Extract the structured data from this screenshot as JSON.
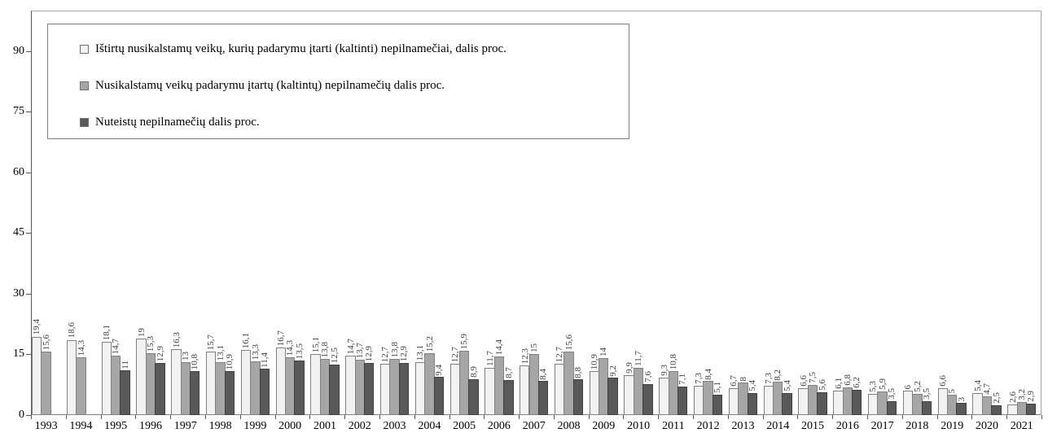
{
  "chart_data": {
    "type": "bar",
    "title": "",
    "xlabel": "",
    "ylabel": "",
    "ylim": [
      0,
      100
    ],
    "yticks": [
      0,
      15,
      30,
      45,
      60,
      75,
      90
    ],
    "grid": false,
    "legend_position": "top-left",
    "value_labels": "rotated-vertical, comma decimal separator",
    "categories": [
      "1993",
      "1994",
      "1995",
      "1996",
      "1997",
      "1998",
      "1999",
      "2000",
      "2001",
      "2002",
      "2003",
      "2004",
      "2005",
      "2006",
      "2007",
      "2008",
      "2009",
      "2010",
      "2011",
      "2012",
      "2013",
      "2014",
      "2015",
      "2016",
      "2017",
      "2018",
      "2019",
      "2020",
      "2021"
    ],
    "series": [
      {
        "name": "Ištirtų nusikalstamų veikų, kurių padarymu įtarti (kaltinti) nepilnamečiai, dalis proc.",
        "color": "#f2f2f2",
        "border": "#808080",
        "values": [
          19.4,
          18.6,
          18.1,
          19,
          16.3,
          15.7,
          16.1,
          16.7,
          15.1,
          14.7,
          12.7,
          13.1,
          12.7,
          11.7,
          12.3,
          12.7,
          10.9,
          9.9,
          9.3,
          7.3,
          6.7,
          7.3,
          6.6,
          6.1,
          5.3,
          6,
          6.6,
          5.4,
          2.6
        ]
      },
      {
        "name": "Nusikalstamų veikų padarymu įtartų (kaltintų) nepilnamečių dalis proc.",
        "color": "#a6a6a6",
        "border": "#808080",
        "values": [
          15.6,
          14.3,
          14.7,
          15.3,
          13,
          13.1,
          13.3,
          14.3,
          13.8,
          13.7,
          13.8,
          15.2,
          15.9,
          14.4,
          15,
          15.6,
          14,
          11.7,
          10.8,
          8.4,
          8,
          8.2,
          7.5,
          6.8,
          5.9,
          5.2,
          5,
          4.7,
          3.2
        ]
      },
      {
        "name": "Nuteistų nepilnamečių dalis proc.",
        "color": "#595959",
        "border": "#404040",
        "values": [
          null,
          null,
          11,
          12.9,
          10.8,
          10.9,
          11.4,
          13.5,
          12.5,
          12.9,
          12.9,
          9.4,
          8.9,
          8.7,
          8.4,
          8.8,
          9.2,
          7.6,
          7.1,
          5.1,
          5.4,
          5.4,
          5.6,
          6.2,
          3.5,
          3.5,
          3,
          2.5,
          2.9
        ]
      }
    ],
    "axis_colors": {
      "frame": "#a6a6a6",
      "axis": "#595959",
      "tick": "#595959",
      "label_text": "#000000",
      "value_label_text": "#404040"
    }
  }
}
